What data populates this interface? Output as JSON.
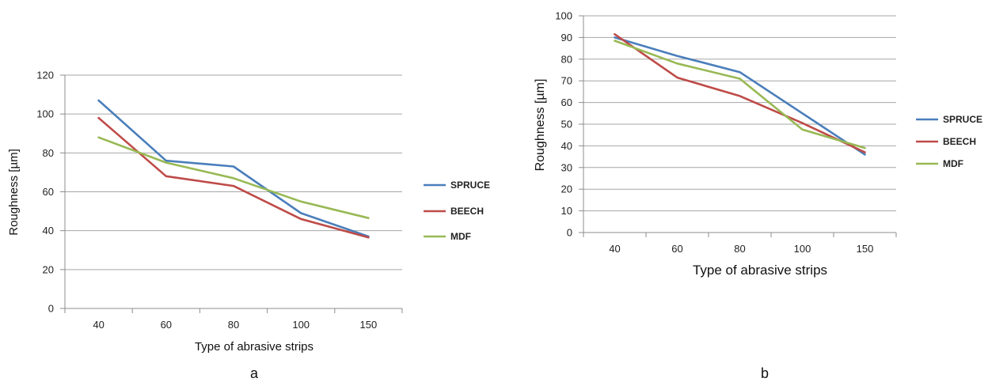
{
  "chart_data": [
    {
      "type": "line",
      "panel_label": "a",
      "categories": [
        "40",
        "60",
        "80",
        "100",
        "150"
      ],
      "xlabel": "Type of abrasive strips",
      "ylabel": "Roughness  [µm]",
      "ylim": [
        0,
        120
      ],
      "yticks": [
        0,
        20,
        40,
        60,
        80,
        100,
        120
      ],
      "grid": true,
      "legend_position": "right",
      "series": [
        {
          "name": "SPRUCE",
          "color": "#4a7ebb",
          "values": [
            107,
            76,
            73,
            49,
            37
          ]
        },
        {
          "name": "BEECH",
          "color": "#be4b48",
          "values": [
            98,
            68,
            63,
            46,
            36.5
          ]
        },
        {
          "name": "MDF",
          "color": "#98b954",
          "values": [
            88,
            75,
            67,
            55,
            46.5
          ]
        }
      ]
    },
    {
      "type": "line",
      "panel_label": "b",
      "categories": [
        "40",
        "60",
        "80",
        "100",
        "150"
      ],
      "xlabel": "Type of abrasive strips",
      "ylabel": "Roughness  [µm]",
      "ylim": [
        0,
        100
      ],
      "yticks": [
        0,
        10,
        20,
        30,
        40,
        50,
        60,
        70,
        80,
        90,
        100
      ],
      "grid": true,
      "legend_position": "right",
      "series": [
        {
          "name": "SPRUCE",
          "color": "#4a7ebb",
          "values": [
            90,
            81.5,
            74,
            55,
            36
          ]
        },
        {
          "name": "BEECH",
          "color": "#be4b48",
          "values": [
            91.5,
            71.5,
            63,
            50.5,
            37
          ]
        },
        {
          "name": "MDF",
          "color": "#98b954",
          "values": [
            88.5,
            78,
            71,
            47.5,
            39
          ]
        }
      ]
    }
  ]
}
